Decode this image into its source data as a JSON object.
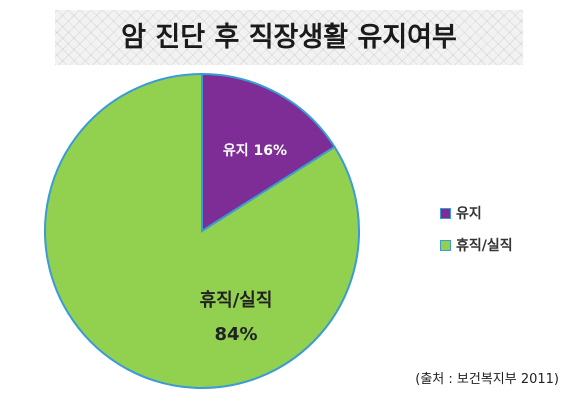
{
  "title": "암 진단 후 직장생활 유지여부",
  "source": "(출처 : 보건복지부 2011)",
  "colors": {
    "maintain": "#7d2d95",
    "quit": "#92d050",
    "border": "#3a9bd5"
  },
  "chart_data": {
    "type": "pie",
    "title": "암 진단 후 직장생활 유지여부",
    "slices": [
      {
        "name": "유지",
        "value": 16,
        "label_name": "유지",
        "label_value": "16%",
        "color": "#7d2d95"
      },
      {
        "name": "휴직/실직",
        "value": 84,
        "label_name": "휴직/실직",
        "label_value": "84%",
        "color": "#92d050"
      }
    ],
    "legend": {
      "placement": "right",
      "entries": [
        "유지",
        "휴직/실직"
      ]
    }
  }
}
